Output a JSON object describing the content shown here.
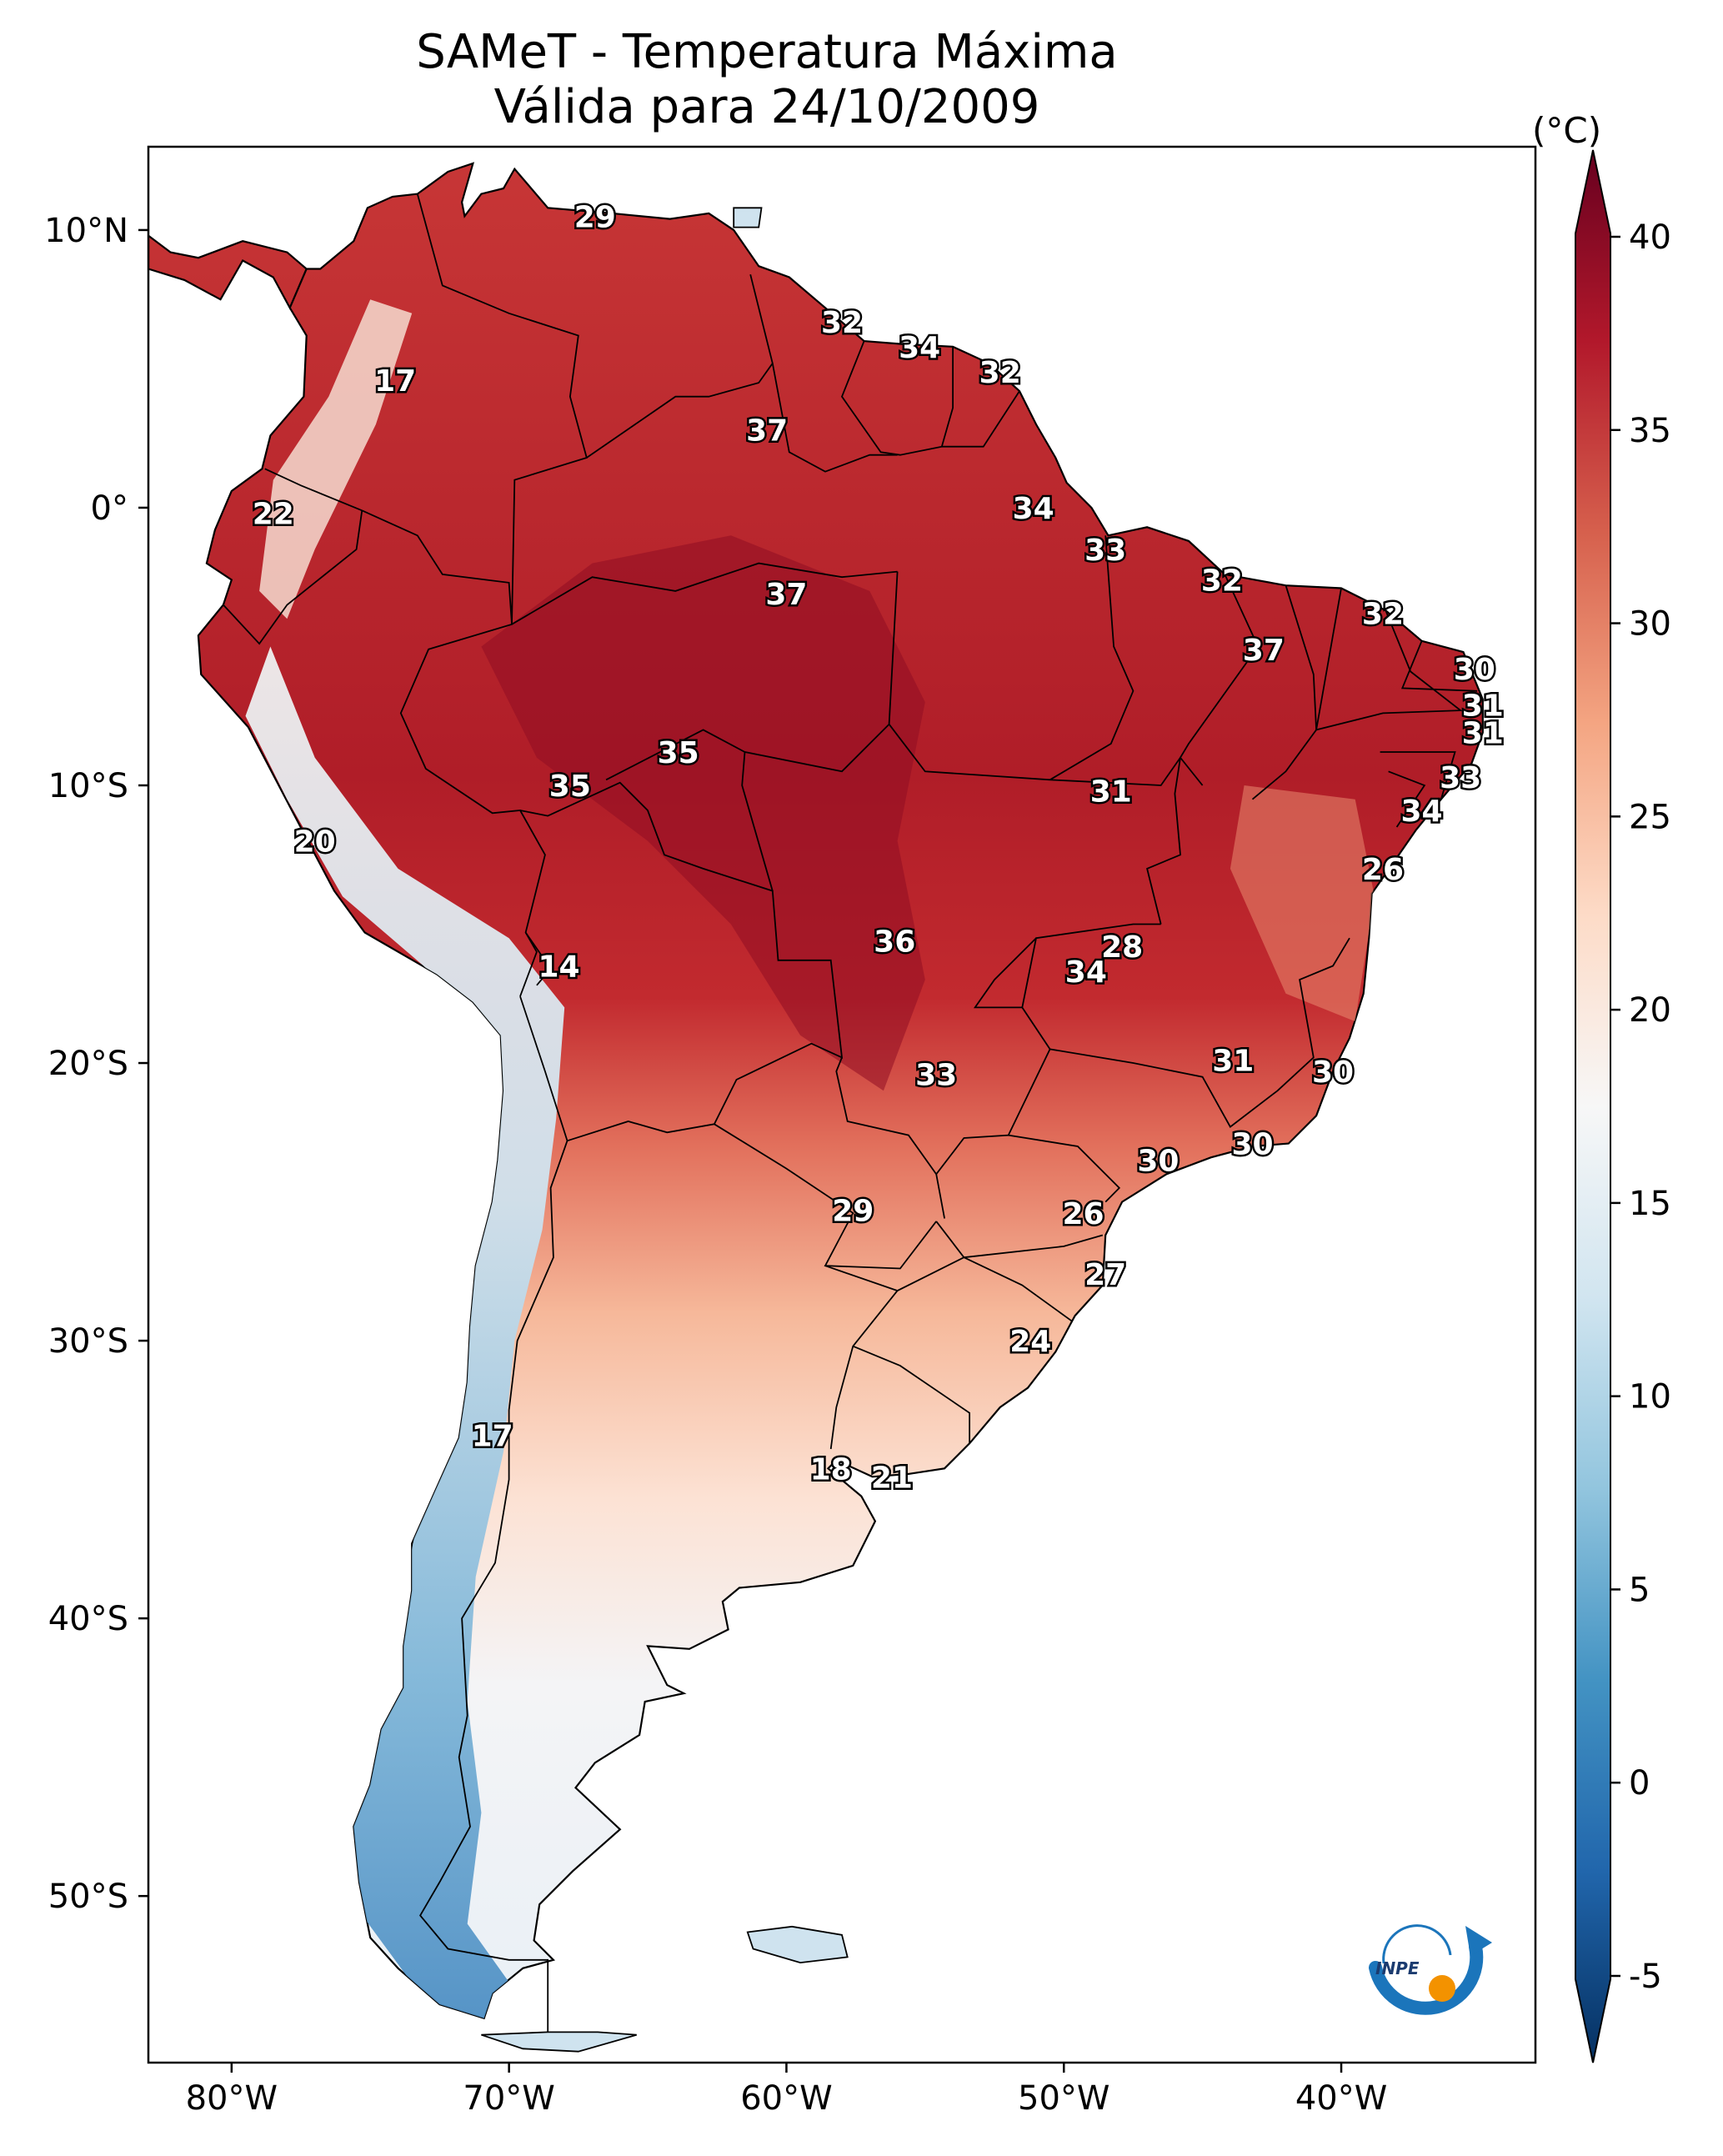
{
  "title": {
    "line1": "SAMeT - Temperatura Máxima",
    "line2": "Válida para 24/10/2009"
  },
  "colorbar": {
    "unit": "(°C)",
    "min": -7,
    "max": 42,
    "ticks": [
      {
        "value": 40,
        "label": "40"
      },
      {
        "value": 35,
        "label": "35"
      },
      {
        "value": 30,
        "label": "30"
      },
      {
        "value": 25,
        "label": "25"
      },
      {
        "value": 20,
        "label": "20"
      },
      {
        "value": 15,
        "label": "15"
      },
      {
        "value": 10,
        "label": "10"
      },
      {
        "value": 5,
        "label": "5"
      },
      {
        "value": 0,
        "label": "0"
      },
      {
        "value": -5,
        "label": "-5"
      }
    ],
    "colors": [
      "#053061",
      "#2166ac",
      "#4393c3",
      "#92c5de",
      "#d1e5f0",
      "#f7f7f7",
      "#fddbc7",
      "#f4a582",
      "#d6604d",
      "#b2182b",
      "#67001f"
    ]
  },
  "axes": {
    "lon_ticks": [
      {
        "value": -80,
        "label": "80°W"
      },
      {
        "value": -70,
        "label": "70°W"
      },
      {
        "value": -60,
        "label": "60°W"
      },
      {
        "value": -50,
        "label": "50°W"
      },
      {
        "value": -40,
        "label": "40°W"
      }
    ],
    "lat_ticks": [
      {
        "value": 10,
        "label": "10°N"
      },
      {
        "value": 0,
        "label": "0°"
      },
      {
        "value": -10,
        "label": "10°S"
      },
      {
        "value": -20,
        "label": "20°S"
      },
      {
        "value": -30,
        "label": "30°S"
      },
      {
        "value": -40,
        "label": "40°S"
      },
      {
        "value": -50,
        "label": "50°S"
      }
    ],
    "lon_range": [
      -83,
      -33
    ],
    "lat_range": [
      -56,
      13
    ]
  },
  "city_labels": [
    {
      "value": "29",
      "lon": -66.9,
      "lat": 10.5
    },
    {
      "value": "32",
      "lon": -58.0,
      "lat": 6.7
    },
    {
      "value": "34",
      "lon": -55.2,
      "lat": 5.8
    },
    {
      "value": "32",
      "lon": -52.3,
      "lat": 4.9
    },
    {
      "value": "17",
      "lon": -74.1,
      "lat": 4.6
    },
    {
      "value": "37",
      "lon": -60.7,
      "lat": 2.8
    },
    {
      "value": "22",
      "lon": -78.5,
      "lat": -0.2
    },
    {
      "value": "34",
      "lon": -51.1,
      "lat": 0.0
    },
    {
      "value": "33",
      "lon": -48.5,
      "lat": -1.5
    },
    {
      "value": "32",
      "lon": -44.3,
      "lat": -2.6
    },
    {
      "value": "37",
      "lon": -60.0,
      "lat": -3.1
    },
    {
      "value": "32",
      "lon": -38.5,
      "lat": -3.8
    },
    {
      "value": "37",
      "lon": -42.8,
      "lat": -5.1
    },
    {
      "value": "30",
      "lon": -35.2,
      "lat": -5.8
    },
    {
      "value": "31",
      "lon": -34.9,
      "lat": -7.1
    },
    {
      "value": "31",
      "lon": -34.9,
      "lat": -8.1
    },
    {
      "value": "35",
      "lon": -63.9,
      "lat": -8.8
    },
    {
      "value": "35",
      "lon": -67.8,
      "lat": -10.0
    },
    {
      "value": "33",
      "lon": -35.7,
      "lat": -9.7
    },
    {
      "value": "31",
      "lon": -48.3,
      "lat": -10.2
    },
    {
      "value": "34",
      "lon": -37.1,
      "lat": -10.9
    },
    {
      "value": "20",
      "lon": -77.0,
      "lat": -12.0
    },
    {
      "value": "26",
      "lon": -38.5,
      "lat": -13.0
    },
    {
      "value": "36",
      "lon": -56.1,
      "lat": -15.6
    },
    {
      "value": "28",
      "lon": -47.9,
      "lat": -15.8
    },
    {
      "value": "14",
      "lon": -68.2,
      "lat": -16.5
    },
    {
      "value": "34",
      "lon": -49.2,
      "lat": -16.7
    },
    {
      "value": "31",
      "lon": -43.9,
      "lat": -19.9
    },
    {
      "value": "30",
      "lon": -40.3,
      "lat": -20.3
    },
    {
      "value": "33",
      "lon": -54.6,
      "lat": -20.4
    },
    {
      "value": "30",
      "lon": -43.2,
      "lat": -22.9
    },
    {
      "value": "30",
      "lon": -46.6,
      "lat": -23.5
    },
    {
      "value": "29",
      "lon": -57.6,
      "lat": -25.3
    },
    {
      "value": "26",
      "lon": -49.3,
      "lat": -25.4
    },
    {
      "value": "27",
      "lon": -48.5,
      "lat": -27.6
    },
    {
      "value": "24",
      "lon": -51.2,
      "lat": -30.0
    },
    {
      "value": "17",
      "lon": -70.6,
      "lat": -33.4
    },
    {
      "value": "18",
      "lon": -58.4,
      "lat": -34.6
    },
    {
      "value": "21",
      "lon": -56.2,
      "lat": -34.9
    }
  ],
  "logo": {
    "text": "INPE"
  }
}
